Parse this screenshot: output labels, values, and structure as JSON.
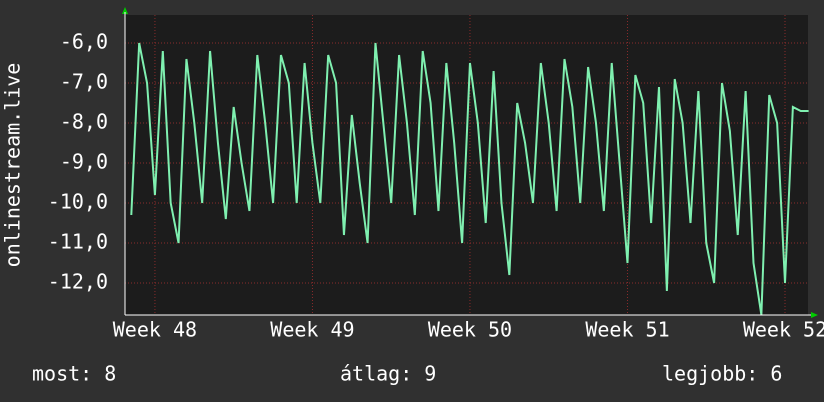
{
  "chart_data": {
    "type": "line",
    "y_label": "onlinestream.live",
    "x": [
      47.85,
      47.9,
      47.95,
      48.0,
      48.05,
      48.1,
      48.15,
      48.2,
      48.25,
      48.3,
      48.35,
      48.4,
      48.45,
      48.5,
      48.55,
      48.6,
      48.65,
      48.7,
      48.75,
      48.8,
      48.85,
      48.9,
      48.95,
      49.0,
      49.05,
      49.1,
      49.15,
      49.2,
      49.25,
      49.3,
      49.35,
      49.4,
      49.45,
      49.5,
      49.55,
      49.6,
      49.65,
      49.7,
      49.75,
      49.8,
      49.85,
      49.9,
      49.95,
      50.0,
      50.05,
      50.1,
      50.15,
      50.2,
      50.25,
      50.3,
      50.35,
      50.4,
      50.45,
      50.5,
      50.55,
      50.6,
      50.65,
      50.7,
      50.75,
      50.8,
      50.85,
      50.9,
      50.95,
      51.0,
      51.05,
      51.1,
      51.15,
      51.2,
      51.25,
      51.3,
      51.35,
      51.4,
      51.45,
      51.5,
      51.55,
      51.6,
      51.65,
      51.7,
      51.75,
      51.8,
      51.85,
      51.9,
      51.95,
      52.0,
      52.05,
      52.1,
      52.15
    ],
    "series": [
      {
        "color": "#7ff0b0",
        "values": [
          -10.3,
          -6.0,
          -7.0,
          -9.8,
          -6.2,
          -10.0,
          -11.0,
          -6.4,
          -8.0,
          -10.0,
          -6.2,
          -8.5,
          -10.4,
          -7.6,
          -9.0,
          -10.2,
          -6.3,
          -8.0,
          -10.0,
          -6.3,
          -7.0,
          -10.0,
          -6.5,
          -8.5,
          -10.0,
          -6.3,
          -7.0,
          -10.8,
          -7.8,
          -9.5,
          -11.0,
          -6.0,
          -8.0,
          -10.0,
          -6.3,
          -8.0,
          -10.3,
          -6.2,
          -7.5,
          -10.2,
          -6.5,
          -8.5,
          -11.0,
          -6.5,
          -8.0,
          -10.5,
          -6.7,
          -10.0,
          -11.8,
          -7.5,
          -8.5,
          -10.0,
          -6.5,
          -8.0,
          -10.2,
          -6.4,
          -7.6,
          -10.0,
          -6.6,
          -8.0,
          -10.2,
          -6.5,
          -9.0,
          -11.5,
          -6.8,
          -7.5,
          -10.5,
          -7.1,
          -12.2,
          -6.9,
          -8.0,
          -10.5,
          -7.2,
          -11.0,
          -12.0,
          -7.0,
          -8.2,
          -10.8,
          -7.2,
          -11.5,
          -12.8,
          -7.3,
          -8.0,
          -12.0,
          -7.6,
          -7.7,
          -7.7
        ]
      }
    ],
    "xlim": [
      47.81,
      52.146
    ],
    "xticks": [
      {
        "value": 48,
        "label": "Week 48"
      },
      {
        "value": 49,
        "label": "Week 49"
      },
      {
        "value": 50,
        "label": "Week 50"
      },
      {
        "value": 51,
        "label": "Week 51"
      },
      {
        "value": 52,
        "label": "Week 52"
      }
    ],
    "ylim": [
      -12.8,
      -5.3
    ],
    "yticks": [
      {
        "value": -6,
        "label": "-6,0"
      },
      {
        "value": -7,
        "label": "-7,0"
      },
      {
        "value": -8,
        "label": "-8,0"
      },
      {
        "value": -9,
        "label": "-9,0"
      },
      {
        "value": -10,
        "label": "-10,0"
      },
      {
        "value": -11,
        "label": "-11,0"
      },
      {
        "value": -12,
        "label": "-12,0"
      }
    ],
    "grid": true,
    "stats": [
      "most: 8",
      "átlag: 9",
      "legjobb: 6"
    ]
  }
}
